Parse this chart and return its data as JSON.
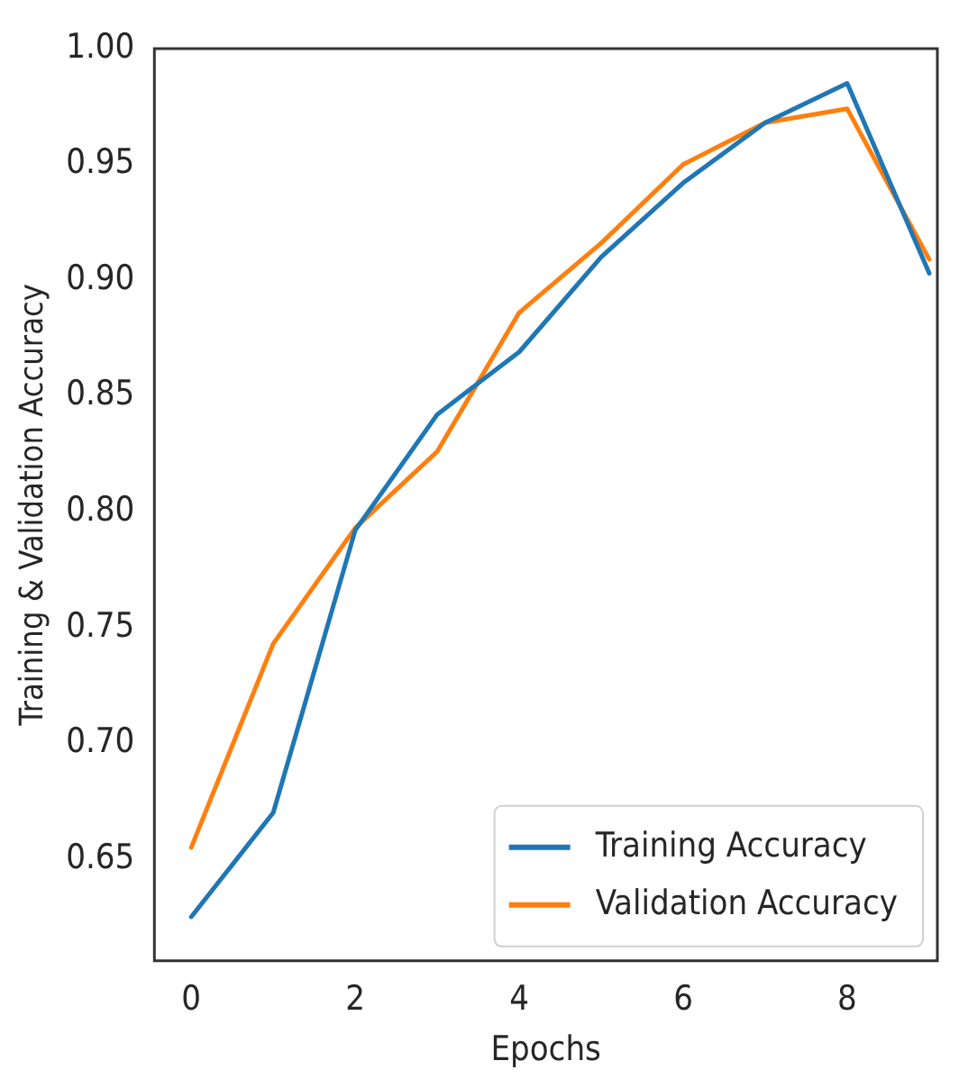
{
  "chart_data": {
    "type": "line",
    "xlabel": "Epochs",
    "ylabel": "Training & Validation Accuracy",
    "x": [
      0,
      1,
      2,
      3,
      4,
      5,
      6,
      7,
      8,
      9
    ],
    "series": [
      {
        "name": "Training Accuracy",
        "color": "#1f77b4",
        "values": [
          0.625,
          0.67,
          0.792,
          0.842,
          0.869,
          0.91,
          0.942,
          0.968,
          0.985,
          0.903
        ]
      },
      {
        "name": "Validation Accuracy",
        "color": "#ff7f0e",
        "values": [
          0.655,
          0.743,
          0.793,
          0.826,
          0.886,
          0.916,
          0.95,
          0.968,
          0.974,
          0.909
        ]
      }
    ],
    "xlim": [
      -0.45,
      9.1
    ],
    "xticks": [
      0,
      2,
      4,
      6,
      8
    ],
    "ylim": [
      0.606,
      1.0
    ],
    "yticks": [
      {
        "value": 0.65,
        "label": "0.65"
      },
      {
        "value": 0.7,
        "label": "0.70"
      },
      {
        "value": 0.75,
        "label": "0.75"
      },
      {
        "value": 0.8,
        "label": "0.80"
      },
      {
        "value": 0.85,
        "label": "0.85"
      },
      {
        "value": 0.9,
        "label": "0.90"
      },
      {
        "value": 0.95,
        "label": "0.95"
      },
      {
        "value": 1.0,
        "label": "1.00"
      }
    ],
    "grid": false,
    "legend": "bottom right",
    "marker": "none",
    "line_style": "solid"
  }
}
